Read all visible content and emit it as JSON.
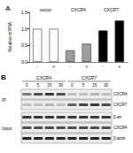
{
  "chart_data": {
    "type": "bar",
    "title": "A",
    "ylabel": "Relative mRNA",
    "annotations": [
      "vector",
      "CXCR4",
      "CXCR7"
    ],
    "categories": [
      "-",
      "+",
      "-",
      "+",
      "-",
      "+"
    ],
    "values": [
      1.0,
      1.0,
      0.35,
      0.55,
      0.95,
      1.25
    ],
    "colors": [
      "#ffffff",
      "#ffffff",
      "#9e9e9e",
      "#9e9e9e",
      "#000000",
      "#000000"
    ],
    "ylim": [
      0,
      1.5
    ],
    "yticks": [
      {
        "value": 0,
        "label": "0.0"
      },
      {
        "value": 0.5,
        "label": "0.5"
      },
      {
        "value": 1,
        "label": "1.0"
      },
      {
        "value": 1.5,
        "label": "1.5"
      }
    ],
    "grid": false
  },
  "blot": {
    "title": "B",
    "groups": [
      "CXCR4",
      "CXCR7"
    ],
    "lanes": [
      "0",
      "5",
      "15",
      "30",
      "0",
      "5",
      "15",
      "30"
    ],
    "sections": [
      {
        "label": "IP",
        "rows": [
          {
            "label": "CXCR4",
            "bands": [
              0.5,
              0.7,
              0.8,
              0.7,
              0.2,
              0.2,
              0.25,
              0.2
            ]
          },
          {
            "label": "CXCR7",
            "bands": [
              0.2,
              0.2,
              0.25,
              0.2,
              0.6,
              0.75,
              0.8,
              0.7
            ]
          }
        ]
      },
      {
        "label": "Input",
        "rows": [
          {
            "label": "β-arr",
            "bands": [
              0.8,
              0.8,
              0.8,
              0.8,
              0.8,
              0.8,
              0.8,
              0.8
            ]
          },
          {
            "label": "CXCR4",
            "bands": [
              0.7,
              0.7,
              0.7,
              0.7,
              0.7,
              0.7,
              0.7,
              0.7
            ]
          },
          {
            "label": "β-actin",
            "bands": [
              0.85,
              0.85,
              0.85,
              0.85,
              0.85,
              0.85,
              0.85,
              0.85
            ]
          }
        ]
      }
    ]
  }
}
